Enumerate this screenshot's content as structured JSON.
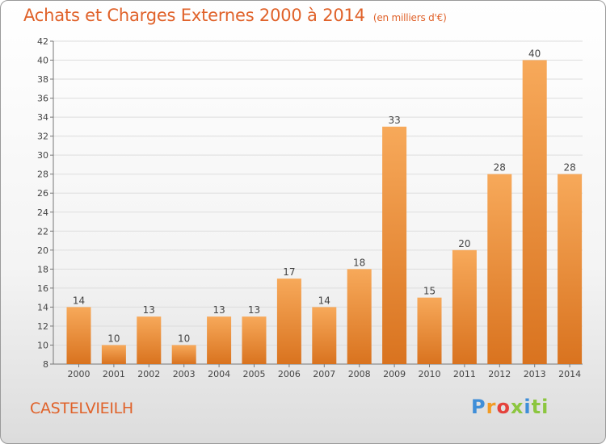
{
  "page": {
    "title": "Achats et Charges Externes 2000 à 2014",
    "subtitle": "(en milliers d'€)",
    "commune": "CASTELVIEILH",
    "logo": [
      "P",
      "r",
      "o",
      "x",
      "i",
      "ti"
    ]
  },
  "colors": {
    "accent": "#e0622a",
    "bar_top": "#f7a95a",
    "bar_bottom": "#d9731f",
    "grid": "#dddddd"
  },
  "chart_data": {
    "type": "bar",
    "title": "Achats et Charges Externes 2000 à 2014",
    "subtitle": "(en milliers d'€)",
    "xlabel": "",
    "ylabel": "",
    "categories": [
      "2000",
      "2001",
      "2002",
      "2003",
      "2004",
      "2005",
      "2006",
      "2007",
      "2008",
      "2009",
      "2010",
      "2011",
      "2012",
      "2013",
      "2014"
    ],
    "values": [
      14,
      10,
      13,
      10,
      13,
      13,
      17,
      14,
      18,
      33,
      15,
      20,
      28,
      40,
      28
    ],
    "ylim": [
      8,
      42
    ],
    "yticks": [
      8,
      10,
      12,
      14,
      16,
      18,
      20,
      22,
      24,
      26,
      28,
      30,
      32,
      34,
      36,
      38,
      40,
      42
    ],
    "grid": true,
    "legend": "none"
  }
}
